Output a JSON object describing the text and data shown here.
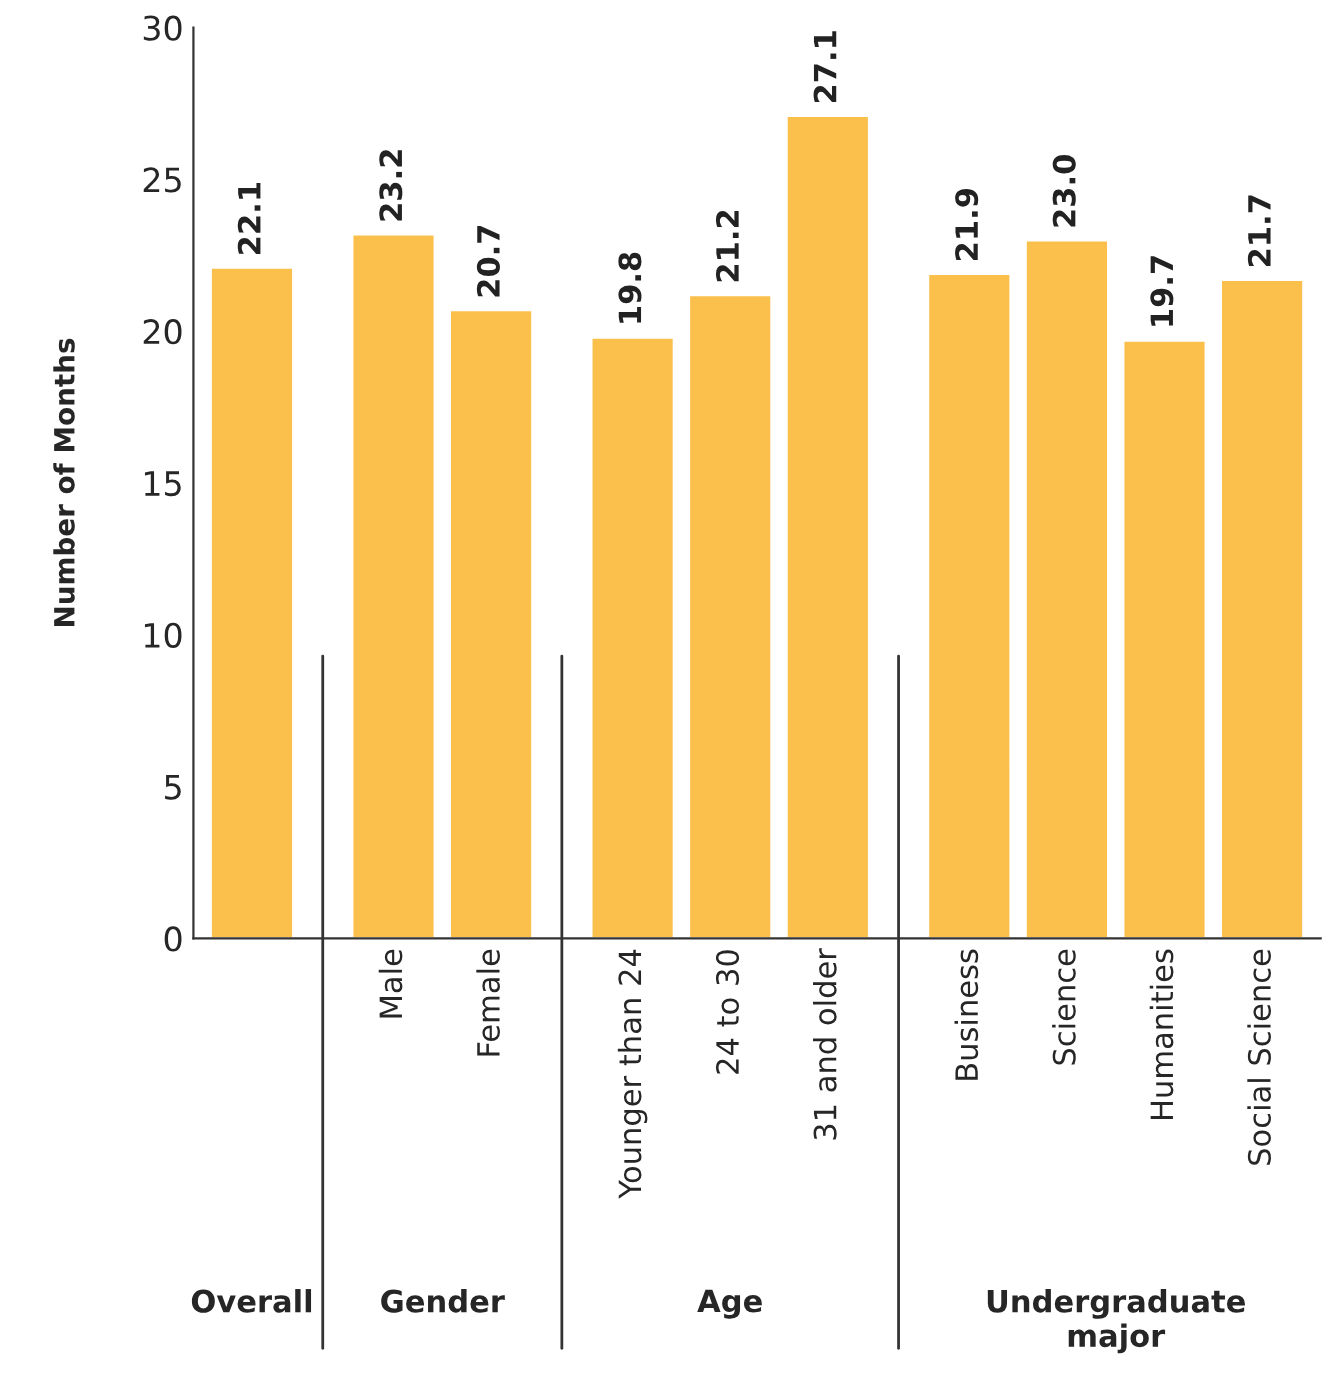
{
  "chart_data": {
    "type": "bar",
    "ylabel": "Number of Months",
    "categories": [
      null,
      "Male",
      "Female",
      "Younger than 24",
      "24 to 30",
      "31 and older",
      "Business",
      "Science",
      "Humanities",
      "Social Science"
    ],
    "values": [
      22.1,
      23.2,
      20.7,
      19.8,
      21.2,
      27.1,
      21.9,
      23.0,
      19.7,
      21.7
    ],
    "value_labels": [
      "22.1",
      "23.2",
      "20.7",
      "19.8",
      "21.2",
      "27.1",
      "21.9",
      "23.0",
      "19.7",
      "21.7"
    ],
    "color": "#fbc04c",
    "ylim": [
      0,
      30
    ],
    "yticks": [
      0,
      5,
      10,
      15,
      20,
      25,
      30
    ],
    "grid": false,
    "annotations": [
      "Overall",
      "Gender",
      "Age",
      "Undergraduate major"
    ]
  }
}
